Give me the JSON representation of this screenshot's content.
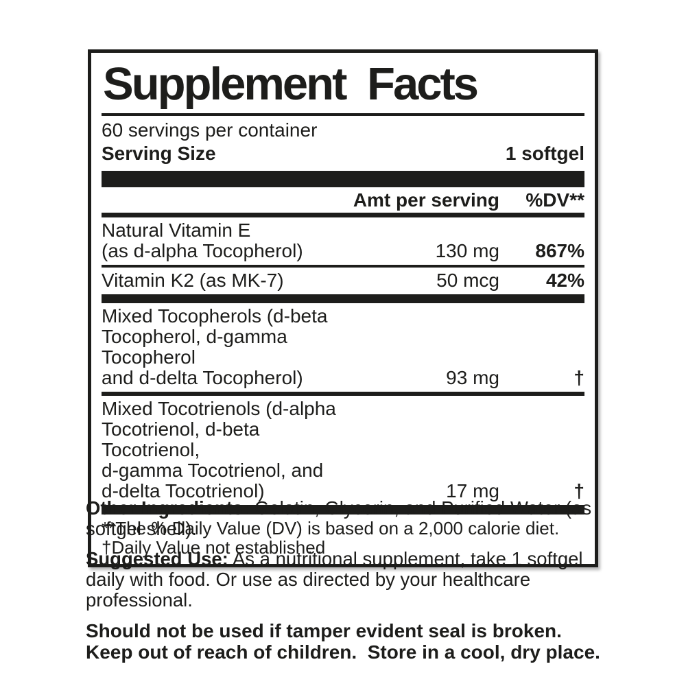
{
  "colors": {
    "ink": "#1d1d1b",
    "background": "#ffffff"
  },
  "supplement_facts": {
    "title": "Supplement Facts",
    "servings_per_container": "60 servings per container",
    "serving_size": {
      "label": "Serving Size",
      "value": "1 softgel"
    },
    "columns": {
      "amount": "Amt per serving",
      "dv": "%DV**"
    },
    "rows": [
      {
        "name": "Natural Vitamin E\n(as d-alpha Tocopherol)",
        "amount": "130 mg",
        "dv": "867%"
      },
      {
        "name": "Vitamin K2 (as MK-7)",
        "amount": "50 mcg",
        "dv": "42%"
      },
      {
        "name": "Mixed Tocopherols (d-beta\nTocopherol, d-gamma Tocopherol\nand d-delta Tocopherol)",
        "amount": "93 mg",
        "dv": "†"
      },
      {
        "name": "Mixed Tocotrienols (d-alpha\nTocotrienol, d-beta Tocotrienol,\nd-gamma Tocotrienol, and\nd-delta Tocotrienol)",
        "amount": "17 mg",
        "dv": "†"
      }
    ],
    "footnotes": [
      "**The % Daily Value (DV) is based on a 2,000 calorie diet.",
      "†Daily Value not established"
    ]
  },
  "other_ingredients": {
    "label": "Other Ingredients:",
    "text": " Gelatin, Glycerin, and Purified Water (as softgel shell)."
  },
  "suggested_use": {
    "label": "Suggested Use:",
    "text": " As a nutritional supplement, take 1 softgel daily with food. Or use as directed by your healthcare professional."
  },
  "warnings": [
    "Should not be used if tamper evident seal is broken.",
    "Keep out of reach of children.  Store in a cool, dry place."
  ]
}
